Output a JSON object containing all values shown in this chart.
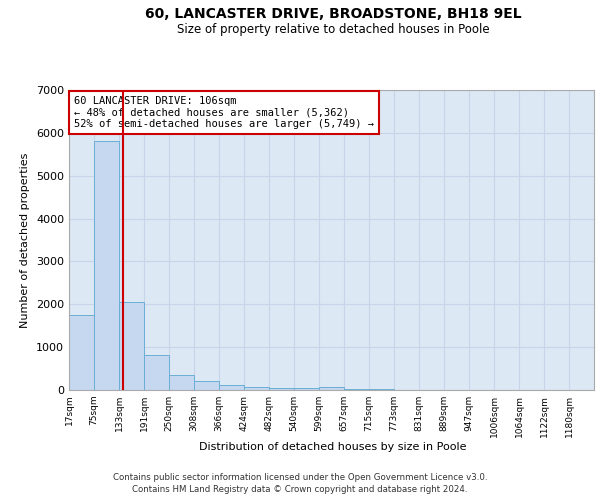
{
  "title": "60, LANCASTER DRIVE, BROADSTONE, BH18 9EL",
  "subtitle": "Size of property relative to detached houses in Poole",
  "xlabel": "Distribution of detached houses by size in Poole",
  "ylabel": "Number of detached properties",
  "bin_labels": [
    "17sqm",
    "75sqm",
    "133sqm",
    "191sqm",
    "250sqm",
    "308sqm",
    "366sqm",
    "424sqm",
    "482sqm",
    "540sqm",
    "599sqm",
    "657sqm",
    "715sqm",
    "773sqm",
    "831sqm",
    "889sqm",
    "947sqm",
    "1006sqm",
    "1064sqm",
    "1122sqm",
    "1180sqm"
  ],
  "bar_heights": [
    1750,
    5800,
    2050,
    820,
    340,
    200,
    120,
    80,
    55,
    40,
    60,
    30,
    20,
    10,
    5,
    5,
    5,
    3,
    3,
    2,
    1
  ],
  "bar_color": "#c5d8f0",
  "bar_edge_color": "#6baed6",
  "red_line_x": 2.15,
  "red_line_color": "#cc0000",
  "annotation_text": "60 LANCASTER DRIVE: 106sqm\n← 48% of detached houses are smaller (5,362)\n52% of semi-detached houses are larger (5,749) →",
  "annotation_box_color": "#ffffff",
  "annotation_box_edge": "#cc0000",
  "ylim": [
    0,
    7000
  ],
  "yticks": [
    0,
    1000,
    2000,
    3000,
    4000,
    5000,
    6000,
    7000
  ],
  "grid_color": "#c8d4e8",
  "background_color": "#dde8f5",
  "footer_line1": "Contains HM Land Registry data © Crown copyright and database right 2024.",
  "footer_line2": "Contains public sector information licensed under the Open Government Licence v3.0."
}
